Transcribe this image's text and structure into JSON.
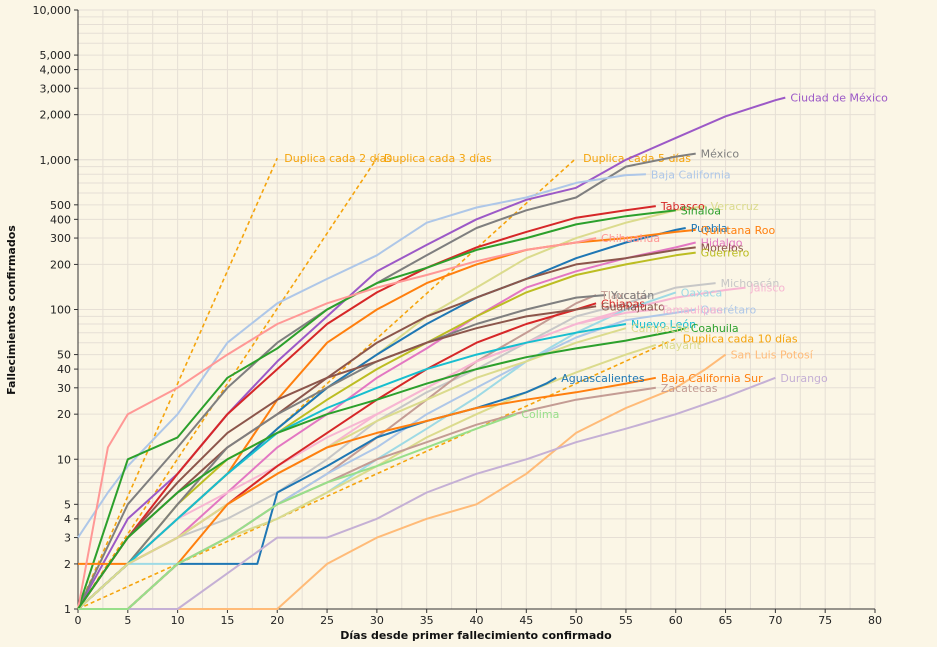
{
  "chart_data": {
    "type": "line",
    "xlabel": "Días desde primer fallecimiento confirmado",
    "ylabel": "Fallecimientos confirmados",
    "xlim": [
      0,
      80
    ],
    "ylim": [
      1,
      10000
    ],
    "y_scale": "log",
    "grid": true,
    "x_ticks": [
      "0",
      "5",
      "10",
      "15",
      "20",
      "25",
      "30",
      "35",
      "40",
      "45",
      "50",
      "55",
      "60",
      "65",
      "70",
      "75",
      "80"
    ],
    "y_ticks": [
      {
        "value": 1,
        "label": "1"
      },
      {
        "value": 2,
        "label": "2"
      },
      {
        "value": 3,
        "label": "3"
      },
      {
        "value": 4,
        "label": "4"
      },
      {
        "value": 5,
        "label": "5"
      },
      {
        "value": 10,
        "label": "10"
      },
      {
        "value": 20,
        "label": "20"
      },
      {
        "value": 30,
        "label": "30"
      },
      {
        "value": 40,
        "label": "40"
      },
      {
        "value": 50,
        "label": "50"
      },
      {
        "value": 100,
        "label": "100"
      },
      {
        "value": 200,
        "label": "200"
      },
      {
        "value": 300,
        "label": "300"
      },
      {
        "value": 400,
        "label": "400"
      },
      {
        "value": 500,
        "label": "500"
      },
      {
        "value": 1000,
        "label": "1,000"
      },
      {
        "value": 2000,
        "label": "2,000"
      },
      {
        "value": 3000,
        "label": "3,000"
      },
      {
        "value": 4000,
        "label": "4,000"
      },
      {
        "value": 5000,
        "label": "5,000"
      },
      {
        "value": 10000,
        "label": "10,000"
      }
    ],
    "reference_lines": [
      {
        "name": "Duplica cada 2 días",
        "color": "#f5a40c",
        "x": [
          0,
          20
        ],
        "y": [
          1,
          1024
        ]
      },
      {
        "name": "Duplica cada 3 días",
        "color": "#f5a40c",
        "x": [
          0,
          30
        ],
        "y": [
          1,
          1024
        ]
      },
      {
        "name": "Duplica cada 5 días",
        "color": "#f5a40c",
        "x": [
          0,
          50
        ],
        "y": [
          1,
          1024
        ]
      },
      {
        "name": "Duplica cada 10 días",
        "color": "#f5a40c",
        "x": [
          0,
          60
        ],
        "y": [
          1,
          64
        ]
      }
    ],
    "series": [
      {
        "name": "Ciudad de México",
        "color": "#9c59c7",
        "x": [
          0,
          5,
          10,
          15,
          20,
          25,
          30,
          35,
          40,
          45,
          50,
          55,
          60,
          65,
          70,
          71
        ],
        "y": [
          1,
          4,
          8,
          20,
          45,
          90,
          180,
          270,
          400,
          540,
          650,
          1000,
          1400,
          1950,
          2500,
          2600
        ]
      },
      {
        "name": "México",
        "color": "#7f7f7f",
        "x": [
          0,
          5,
          10,
          15,
          20,
          25,
          30,
          35,
          40,
          45,
          50,
          55,
          60,
          62
        ],
        "y": [
          1,
          5,
          12,
          30,
          60,
          100,
          150,
          230,
          350,
          460,
          560,
          900,
          1050,
          1100
        ]
      },
      {
        "name": "Baja California",
        "color": "#aec7e8",
        "x": [
          0,
          3,
          5,
          10,
          15,
          20,
          25,
          30,
          35,
          40,
          45,
          50,
          55,
          57
        ],
        "y": [
          3,
          6,
          9,
          20,
          60,
          110,
          160,
          230,
          380,
          480,
          560,
          700,
          790,
          800
        ]
      },
      {
        "name": "Tabasco",
        "color": "#d62728",
        "x": [
          0,
          5,
          10,
          15,
          20,
          25,
          30,
          35,
          40,
          45,
          50,
          55,
          58
        ],
        "y": [
          1,
          3,
          8,
          20,
          40,
          80,
          130,
          190,
          260,
          330,
          410,
          460,
          490
        ]
      },
      {
        "name": "Veracruz",
        "color": "#dbdb8d",
        "x": [
          0,
          5,
          10,
          15,
          20,
          25,
          30,
          35,
          40,
          45,
          50,
          55,
          60,
          63
        ],
        "y": [
          1,
          2,
          4,
          8,
          16,
          30,
          50,
          90,
          140,
          220,
          300,
          380,
          460,
          490
        ]
      },
      {
        "name": "Sinaloa",
        "color": "#2ca02c",
        "x": [
          0,
          5,
          10,
          15,
          20,
          25,
          30,
          35,
          40,
          45,
          50,
          55,
          60
        ],
        "y": [
          1,
          10,
          14,
          35,
          55,
          100,
          150,
          190,
          250,
          300,
          370,
          420,
          460
        ]
      },
      {
        "name": "Puebla",
        "color": "#1f77b4",
        "x": [
          0,
          5,
          10,
          15,
          20,
          25,
          30,
          35,
          40,
          45,
          50,
          55,
          60,
          61
        ],
        "y": [
          1,
          2,
          4,
          8,
          16,
          30,
          50,
          80,
          120,
          160,
          220,
          280,
          340,
          350
        ]
      },
      {
        "name": "Quintana Roo",
        "color": "#ff7f0e",
        "x": [
          0,
          5,
          10,
          15,
          20,
          25,
          30,
          35,
          40,
          45,
          50,
          55,
          60,
          62
        ],
        "y": [
          2,
          2,
          4,
          8,
          25,
          60,
          100,
          150,
          200,
          250,
          280,
          300,
          330,
          340
        ]
      },
      {
        "name": "Chihuahua",
        "color": "#ff9896",
        "x": [
          0,
          3,
          5,
          10,
          15,
          20,
          25,
          30,
          35,
          40,
          45,
          50,
          52
        ],
        "y": [
          1,
          12,
          20,
          30,
          50,
          80,
          110,
          140,
          170,
          210,
          250,
          280,
          300
        ]
      },
      {
        "name": "Hidalgo",
        "color": "#e377c2",
        "x": [
          0,
          5,
          10,
          15,
          20,
          25,
          30,
          35,
          40,
          45,
          50,
          55,
          60,
          62
        ],
        "y": [
          1,
          2,
          3,
          6,
          12,
          20,
          35,
          55,
          90,
          140,
          180,
          220,
          260,
          280
        ]
      },
      {
        "name": "Morelos",
        "color": "#8c564b",
        "x": [
          0,
          5,
          10,
          15,
          20,
          25,
          30,
          35,
          40,
          45,
          50,
          55,
          60,
          62
        ],
        "y": [
          1,
          3,
          6,
          12,
          20,
          35,
          60,
          90,
          120,
          160,
          200,
          220,
          250,
          260
        ]
      },
      {
        "name": "Guerrero",
        "color": "#bcbd22",
        "x": [
          0,
          5,
          10,
          15,
          20,
          25,
          30,
          35,
          40,
          45,
          50,
          55,
          60,
          62
        ],
        "y": [
          1,
          2,
          5,
          10,
          15,
          25,
          40,
          60,
          90,
          130,
          170,
          200,
          230,
          240
        ]
      },
      {
        "name": "Michoacán",
        "color": "#c7c7c7",
        "x": [
          0,
          5,
          10,
          15,
          20,
          25,
          30,
          35,
          40,
          45,
          50,
          55,
          60,
          64
        ],
        "y": [
          1,
          2,
          3,
          4,
          6,
          10,
          18,
          28,
          40,
          60,
          90,
          110,
          140,
          150
        ]
      },
      {
        "name": "Jalisco",
        "color": "#f7b6d2",
        "x": [
          0,
          5,
          10,
          15,
          20,
          25,
          30,
          35,
          40,
          45,
          50,
          55,
          60,
          65,
          67
        ],
        "y": [
          1,
          2,
          4,
          6,
          9,
          14,
          20,
          30,
          45,
          60,
          80,
          100,
          120,
          135,
          140
        ]
      },
      {
        "name": "Oaxaca",
        "color": "#9edae5",
        "x": [
          0,
          5,
          10,
          15,
          20,
          25,
          30,
          35,
          40,
          45,
          50,
          55,
          60
        ],
        "y": [
          1,
          2,
          2,
          3,
          4,
          6,
          10,
          16,
          26,
          45,
          70,
          100,
          130
        ]
      },
      {
        "name": "Tlaxcala",
        "color": "#c49c94",
        "x": [
          0,
          5,
          10,
          15,
          20,
          25,
          30,
          35,
          40,
          45,
          50,
          52
        ],
        "y": [
          1,
          1,
          2,
          3,
          5,
          8,
          14,
          25,
          45,
          70,
          110,
          125
        ]
      },
      {
        "name": "Yucatán",
        "color": "#7f7f7f",
        "x": [
          0,
          5,
          10,
          15,
          20,
          25,
          30,
          35,
          40,
          45,
          50,
          53
        ],
        "y": [
          1,
          2,
          5,
          12,
          20,
          30,
          45,
          60,
          80,
          100,
          120,
          125
        ]
      },
      {
        "name": "Chiapas",
        "color": "#d62728",
        "x": [
          0,
          5,
          10,
          15,
          20,
          25,
          30,
          35,
          40,
          45,
          50,
          52
        ],
        "y": [
          1,
          2,
          3,
          5,
          9,
          15,
          25,
          40,
          60,
          80,
          100,
          110
        ]
      },
      {
        "name": "Guanajuato",
        "color": "#8c564b",
        "x": [
          0,
          5,
          10,
          15,
          20,
          25,
          30,
          35,
          40,
          45,
          50,
          52
        ],
        "y": [
          1,
          3,
          7,
          15,
          25,
          35,
          45,
          60,
          75,
          90,
          100,
          105
        ]
      },
      {
        "name": "Querétaro",
        "color": "#aec7e8",
        "x": [
          0,
          5,
          10,
          15,
          20,
          25,
          30,
          35,
          40,
          45,
          50,
          55,
          60,
          62
        ],
        "y": [
          1,
          1,
          2,
          3,
          5,
          8,
          12,
          20,
          30,
          45,
          65,
          85,
          95,
          100
        ]
      },
      {
        "name": "Tamaulipas",
        "color": "#f7b6d2",
        "x": [
          0,
          5,
          10,
          15,
          20,
          25,
          30,
          35,
          40,
          45,
          50,
          55,
          58
        ],
        "y": [
          1,
          2,
          3,
          5,
          8,
          12,
          20,
          30,
          45,
          60,
          80,
          95,
          100
        ]
      },
      {
        "name": "Nuevo León",
        "color": "#17becf",
        "x": [
          0,
          5,
          10,
          15,
          20,
          25,
          30,
          35,
          40,
          45,
          50,
          55
        ],
        "y": [
          1,
          2,
          4,
          8,
          15,
          22,
          30,
          40,
          50,
          60,
          70,
          80
        ]
      },
      {
        "name": "Campeche",
        "color": "#dbdb8d",
        "x": [
          0,
          5,
          10,
          15,
          20,
          25,
          30,
          35,
          40,
          45,
          50,
          55
        ],
        "y": [
          1,
          2,
          3,
          5,
          8,
          12,
          18,
          25,
          35,
          45,
          60,
          75
        ]
      },
      {
        "name": "Coahuila",
        "color": "#2ca02c",
        "x": [
          0,
          5,
          10,
          15,
          20,
          25,
          30,
          35,
          40,
          45,
          50,
          55,
          60,
          61
        ],
        "y": [
          1,
          3,
          6,
          10,
          15,
          20,
          25,
          32,
          40,
          48,
          55,
          62,
          72,
          75
        ]
      },
      {
        "name": "Nayarit",
        "color": "#dbdb8d",
        "x": [
          0,
          5,
          10,
          15,
          20,
          25,
          30,
          35,
          40,
          45,
          50,
          55,
          58
        ],
        "y": [
          1,
          1,
          2,
          3,
          4,
          6,
          9,
          14,
          20,
          28,
          38,
          50,
          58
        ]
      },
      {
        "name": "San Luis Potosí",
        "color": "#ffbb78",
        "x": [
          0,
          10,
          20,
          25,
          30,
          35,
          40,
          45,
          50,
          55,
          60,
          63,
          65
        ],
        "y": [
          1,
          1,
          1,
          2,
          3,
          4,
          5,
          8,
          15,
          22,
          30,
          40,
          50
        ]
      },
      {
        "name": "Aguascalientes",
        "color": "#1f77b4",
        "x": [
          0,
          5,
          10,
          15,
          18,
          20,
          25,
          30,
          35,
          40,
          45,
          47,
          48
        ],
        "y": [
          1,
          1,
          2,
          2,
          2,
          6,
          9,
          14,
          18,
          22,
          28,
          32,
          35
        ]
      },
      {
        "name": "Baja California Sur",
        "color": "#ff7f0e",
        "x": [
          0,
          5,
          10,
          15,
          20,
          25,
          30,
          35,
          40,
          45,
          50,
          55,
          58
        ],
        "y": [
          1,
          1,
          2,
          5,
          8,
          12,
          15,
          18,
          22,
          25,
          28,
          32,
          35
        ]
      },
      {
        "name": "Zacatecas",
        "color": "#c49c94",
        "x": [
          0,
          5,
          10,
          15,
          20,
          25,
          30,
          35,
          40,
          45,
          50,
          55,
          58
        ],
        "y": [
          1,
          1,
          2,
          3,
          5,
          7,
          10,
          13,
          17,
          21,
          25,
          28,
          30
        ]
      },
      {
        "name": "Durango",
        "color": "#c5b0d5",
        "x": [
          0,
          10,
          20,
          25,
          30,
          35,
          40,
          45,
          50,
          55,
          60,
          65,
          70
        ],
        "y": [
          1,
          1,
          3,
          3,
          4,
          6,
          8,
          10,
          13,
          16,
          20,
          26,
          35
        ]
      },
      {
        "name": "Colima",
        "color": "#98df8a",
        "x": [
          0,
          5,
          10,
          15,
          20,
          25,
          30,
          35,
          40,
          44
        ],
        "y": [
          1,
          1,
          2,
          3,
          5,
          7,
          9,
          12,
          16,
          20
        ]
      }
    ]
  }
}
